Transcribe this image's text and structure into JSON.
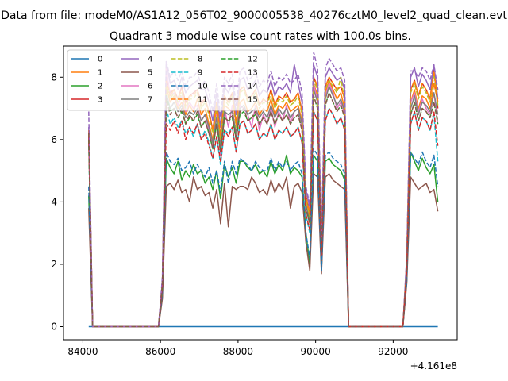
{
  "figure": {
    "suptitle": "Data from file: modeM0/AS1A12_056T02_9000005538_40276cztM0_level2_quad_clean.evt",
    "title": "Quadrant 3 module wise count rates with 100.0s bins.",
    "offset_label": "+4.161e8"
  },
  "chart_data": {
    "type": "line",
    "title": "Quadrant 3 module wise count rates with 100.0s bins.",
    "xlabel": "",
    "ylabel": "",
    "x_offset": 416100000,
    "xlim": [
      83500,
      93650
    ],
    "ylim": [
      -0.42,
      9.0
    ],
    "x_ticks": [
      84000,
      86000,
      88000,
      90000,
      92000
    ],
    "x_tick_labels": [
      "84000",
      "86000",
      "88000",
      "90000",
      "92000"
    ],
    "y_ticks": [
      0,
      2,
      4,
      6,
      8
    ],
    "y_tick_labels": [
      "0",
      "2",
      "4",
      "6",
      "8"
    ],
    "grid": false,
    "legend": {
      "placement": "top-left",
      "columns": 4
    },
    "x_points": [
      84150,
      84250,
      85950,
      86050,
      86150,
      86250,
      86350,
      86450,
      86550,
      86650,
      86750,
      86850,
      86950,
      87050,
      87150,
      87250,
      87350,
      87450,
      87550,
      87650,
      87750,
      87850,
      87950,
      88050,
      88150,
      88250,
      88350,
      88450,
      88550,
      88650,
      88750,
      88850,
      88950,
      89050,
      89150,
      89250,
      89350,
      89450,
      89550,
      89650,
      89750,
      89850,
      89950,
      90050,
      90150,
      90250,
      90350,
      90450,
      90550,
      90650,
      90750,
      90850,
      90950,
      92250,
      92350,
      92450,
      92550,
      92650,
      92750,
      92850,
      92950,
      93050,
      93150
    ],
    "series": [
      {
        "name": "0",
        "color": "#1f77b4",
        "dash": "solid",
        "values": [
          0,
          0,
          0,
          0,
          0,
          0,
          0,
          0,
          0,
          0,
          0,
          0,
          0,
          0,
          0,
          0,
          0,
          0,
          0,
          0,
          0,
          0,
          0,
          0,
          0,
          0,
          0,
          0,
          0,
          0,
          0,
          0,
          0,
          0,
          0,
          0,
          0,
          0,
          0,
          0,
          0,
          0,
          0,
          0,
          0,
          0,
          0,
          0,
          0,
          0,
          0,
          0,
          0,
          0,
          0,
          0,
          0,
          0,
          0,
          0,
          0,
          0,
          0
        ]
      },
      {
        "name": "1",
        "color": "#ff7f0e",
        "dash": "solid",
        "values": [
          6.0,
          0,
          0,
          1.3,
          7.7,
          7.2,
          7.4,
          7.0,
          7.2,
          6.8,
          7.1,
          6.9,
          7.3,
          6.8,
          7.0,
          6.5,
          6.0,
          6.9,
          5.9,
          7.1,
          7.0,
          6.9,
          6.2,
          7.2,
          7.3,
          6.9,
          7.0,
          7.2,
          6.8,
          7.0,
          6.9,
          7.3,
          6.8,
          7.1,
          7.0,
          7.2,
          6.9,
          7.0,
          7.1,
          6.6,
          4.0,
          3.5,
          7.8,
          7.4,
          2.6,
          7.5,
          7.9,
          7.6,
          7.3,
          7.5,
          7.0,
          0,
          0,
          0,
          2.0,
          7.2,
          7.6,
          7.0,
          7.4,
          7.3,
          7.0,
          7.8,
          7.2
        ]
      },
      {
        "name": "2",
        "color": "#2ca02c",
        "dash": "solid",
        "values": [
          4.2,
          0,
          0,
          1.0,
          5.4,
          5.1,
          4.9,
          5.3,
          4.7,
          5.0,
          4.8,
          5.2,
          4.9,
          5.0,
          4.6,
          4.8,
          4.4,
          5.0,
          4.1,
          5.2,
          4.8,
          5.1,
          4.6,
          5.3,
          5.3,
          5.1,
          5.0,
          5.2,
          4.9,
          5.0,
          4.8,
          5.3,
          4.9,
          5.2,
          5.0,
          5.5,
          4.9,
          5.1,
          5.0,
          4.8,
          3.0,
          2.0,
          5.5,
          5.3,
          1.8,
          5.3,
          5.4,
          5.2,
          5.1,
          5.0,
          4.7,
          0,
          0,
          0,
          1.5,
          5.6,
          5.3,
          5.0,
          5.4,
          5.1,
          4.9,
          5.2,
          4.0
        ]
      },
      {
        "name": "3",
        "color": "#d62728",
        "dash": "solid",
        "values": [
          6.3,
          0,
          0,
          1.4,
          8.0,
          7.5,
          7.6,
          7.3,
          7.7,
          7.2,
          7.4,
          7.5,
          7.6,
          7.2,
          7.3,
          6.9,
          6.3,
          7.2,
          6.1,
          7.4,
          7.2,
          7.5,
          6.5,
          7.6,
          7.7,
          7.3,
          7.4,
          7.6,
          7.1,
          7.3,
          7.2,
          7.6,
          7.1,
          7.4,
          7.3,
          7.5,
          7.2,
          7.3,
          7.5,
          6.9,
          4.2,
          3.6,
          8.0,
          7.7,
          2.7,
          7.7,
          8.0,
          7.8,
          7.6,
          7.7,
          7.3,
          0,
          0,
          0,
          2.1,
          7.6,
          7.9,
          7.4,
          7.8,
          7.6,
          7.3,
          8.3,
          7.0
        ]
      },
      {
        "name": "4",
        "color": "#9467bd",
        "dash": "solid",
        "values": [
          6.4,
          0,
          0,
          1.5,
          8.5,
          7.8,
          7.9,
          7.6,
          8.0,
          7.5,
          7.7,
          7.8,
          7.9,
          7.6,
          7.6,
          7.2,
          6.6,
          7.5,
          6.4,
          7.7,
          7.5,
          7.8,
          6.8,
          7.9,
          8.0,
          7.6,
          7.7,
          7.9,
          7.4,
          7.6,
          7.5,
          7.9,
          7.4,
          7.7,
          7.6,
          7.8,
          7.5,
          8.4,
          7.8,
          7.2,
          4.4,
          3.8,
          8.4,
          8.0,
          2.8,
          8.0,
          8.3,
          8.1,
          7.9,
          8.0,
          7.6,
          0,
          0,
          0,
          2.2,
          8.0,
          8.3,
          7.7,
          8.1,
          7.9,
          7.6,
          8.4,
          7.3
        ]
      },
      {
        "name": "5",
        "color": "#8c564b",
        "dash": "solid",
        "values": [
          3.8,
          0,
          0,
          0.9,
          4.5,
          4.6,
          4.4,
          4.7,
          4.3,
          4.4,
          4.0,
          4.8,
          4.4,
          4.5,
          4.2,
          4.3,
          3.8,
          4.4,
          3.3,
          4.6,
          3.2,
          4.5,
          4.4,
          4.5,
          4.5,
          4.4,
          4.8,
          4.6,
          4.3,
          4.4,
          4.2,
          4.7,
          4.3,
          4.6,
          4.4,
          4.8,
          3.8,
          4.5,
          4.6,
          4.3,
          2.7,
          1.8,
          4.9,
          4.8,
          1.7,
          4.8,
          4.9,
          4.7,
          4.6,
          4.5,
          4.4,
          0,
          0,
          0,
          1.4,
          4.8,
          4.6,
          4.4,
          4.5,
          4.6,
          4.3,
          4.4,
          3.7
        ]
      },
      {
        "name": "6",
        "color": "#e377c2",
        "dash": "solid",
        "values": [
          6.2,
          0,
          0,
          1.4,
          8.3,
          7.4,
          7.5,
          7.1,
          7.4,
          6.9,
          7.2,
          7.0,
          7.1,
          6.6,
          6.8,
          6.3,
          5.8,
          6.8,
          5.5,
          7.0,
          6.4,
          7.1,
          6.0,
          7.1,
          7.0,
          6.8,
          6.4,
          7.1,
          6.3,
          6.8,
          6.5,
          7.0,
          6.4,
          6.9,
          6.6,
          7.1,
          6.5,
          6.9,
          7.0,
          6.3,
          3.9,
          3.3,
          7.8,
          7.2,
          2.5,
          7.4,
          7.8,
          7.5,
          7.0,
          7.2,
          6.8,
          0,
          0,
          0,
          2.0,
          7.2,
          7.5,
          6.9,
          7.3,
          7.0,
          6.8,
          7.5,
          6.5
        ]
      },
      {
        "name": "7",
        "color": "#7f7f7f",
        "dash": "solid",
        "values": [
          6.1,
          0,
          0,
          1.4,
          7.5,
          7.0,
          7.2,
          6.9,
          7.1,
          6.7,
          6.9,
          6.8,
          7.0,
          6.6,
          6.8,
          6.4,
          5.9,
          6.7,
          5.8,
          6.9,
          6.8,
          6.9,
          6.2,
          7.0,
          7.1,
          6.8,
          6.9,
          7.0,
          6.7,
          6.9,
          6.7,
          7.1,
          6.7,
          7.0,
          6.8,
          7.0,
          6.7,
          6.9,
          7.0,
          6.5,
          3.9,
          3.4,
          7.6,
          7.2,
          2.5,
          7.3,
          7.7,
          7.4,
          7.1,
          7.3,
          6.9,
          0,
          0,
          0,
          2.0,
          7.0,
          7.4,
          6.8,
          7.2,
          7.1,
          6.9,
          7.5,
          6.8
        ]
      },
      {
        "name": "8",
        "color": "#bcbd22",
        "dash": "dashed",
        "values": [
          6.2,
          0,
          0,
          1.4,
          7.8,
          7.3,
          7.5,
          7.2,
          7.5,
          7.0,
          7.3,
          7.3,
          7.5,
          7.0,
          7.2,
          6.8,
          6.2,
          7.1,
          6.0,
          7.3,
          7.1,
          7.4,
          6.4,
          7.5,
          7.6,
          7.2,
          7.3,
          7.5,
          7.0,
          7.2,
          7.1,
          7.5,
          7.0,
          7.3,
          7.2,
          7.4,
          7.1,
          7.2,
          7.4,
          6.8,
          4.1,
          3.5,
          7.9,
          7.6,
          2.6,
          7.6,
          7.9,
          7.7,
          7.5,
          8.0,
          7.2,
          0,
          0,
          0,
          2.1,
          7.5,
          7.8,
          7.3,
          7.7,
          7.5,
          7.2,
          8.1,
          7.1
        ]
      },
      {
        "name": "9",
        "color": "#17becf",
        "dash": "dashed",
        "values": [
          5.8,
          0,
          0,
          1.3,
          7.0,
          6.5,
          6.7,
          6.4,
          6.6,
          6.2,
          6.4,
          6.1,
          6.5,
          6.0,
          6.3,
          5.9,
          5.4,
          6.1,
          5.2,
          6.3,
          6.2,
          6.4,
          5.6,
          6.5,
          6.6,
          6.2,
          6.3,
          6.5,
          6.0,
          6.2,
          6.1,
          6.5,
          6.0,
          6.3,
          6.2,
          6.4,
          6.1,
          6.2,
          6.4,
          5.9,
          3.6,
          3.0,
          6.9,
          6.6,
          2.3,
          6.6,
          7.0,
          6.8,
          6.5,
          6.7,
          6.3,
          0,
          0,
          0,
          1.8,
          6.5,
          6.9,
          6.3,
          6.7,
          6.6,
          6.3,
          6.8,
          5.3
        ]
      },
      {
        "name": "10",
        "color": "#1f77b4",
        "dash": "dashed",
        "values": [
          4.5,
          0,
          0,
          1.1,
          5.6,
          5.3,
          5.2,
          5.4,
          5.0,
          5.1,
          5.3,
          4.9,
          5.2,
          5.0,
          4.8,
          5.1,
          4.6,
          5.0,
          4.3,
          5.3,
          4.6,
          5.3,
          4.9,
          5.4,
          5.3,
          5.2,
          5.0,
          5.3,
          5.1,
          5.0,
          5.0,
          5.4,
          5.0,
          5.3,
          5.1,
          5.3,
          5.0,
          5.2,
          5.3,
          4.9,
          3.0,
          2.2,
          5.7,
          5.5,
          1.8,
          5.5,
          5.6,
          5.4,
          5.3,
          5.2,
          4.9,
          0,
          0,
          0,
          1.5,
          5.6,
          5.4,
          5.2,
          5.6,
          5.3,
          5.1,
          5.5,
          4.5
        ]
      },
      {
        "name": "11",
        "color": "#ff7f0e",
        "dash": "dashed",
        "values": [
          6.3,
          0,
          0,
          1.4,
          7.9,
          7.4,
          7.6,
          7.3,
          7.6,
          7.1,
          7.4,
          7.4,
          7.6,
          7.1,
          7.3,
          6.9,
          6.3,
          7.2,
          6.1,
          7.4,
          7.2,
          7.5,
          6.5,
          7.6,
          7.7,
          7.3,
          7.4,
          7.6,
          7.1,
          7.3,
          7.2,
          7.6,
          7.1,
          7.4,
          7.3,
          7.5,
          7.2,
          7.3,
          7.5,
          6.9,
          4.2,
          3.6,
          8.0,
          7.7,
          2.7,
          7.7,
          8.0,
          7.8,
          7.6,
          7.7,
          7.3,
          0,
          0,
          0,
          2.1,
          7.6,
          7.9,
          7.4,
          7.8,
          7.6,
          7.3,
          8.2,
          7.2
        ]
      },
      {
        "name": "12",
        "color": "#2ca02c",
        "dash": "dashed",
        "values": [
          6.0,
          0,
          0,
          1.3,
          7.4,
          6.9,
          7.0,
          6.7,
          6.9,
          6.5,
          6.7,
          6.6,
          6.8,
          6.4,
          6.6,
          6.2,
          5.7,
          6.5,
          5.6,
          6.7,
          6.6,
          6.7,
          6.0,
          6.8,
          6.9,
          6.6,
          6.7,
          6.8,
          6.5,
          6.7,
          6.5,
          6.9,
          6.5,
          6.8,
          6.6,
          6.8,
          6.5,
          6.7,
          6.8,
          6.3,
          3.8,
          3.3,
          7.4,
          7.0,
          2.4,
          7.1,
          7.5,
          7.2,
          6.9,
          7.1,
          6.7,
          0,
          0,
          0,
          1.9,
          6.8,
          7.2,
          6.6,
          7.0,
          6.9,
          6.7,
          7.2,
          6.5
        ]
      },
      {
        "name": "13",
        "color": "#d62728",
        "dash": "dashed",
        "values": [
          6.1,
          0,
          0,
          1.3,
          6.5,
          6.3,
          6.6,
          6.2,
          6.6,
          6.0,
          6.4,
          6.2,
          6.5,
          6.0,
          6.2,
          5.8,
          5.4,
          6.1,
          5.3,
          6.3,
          6.1,
          6.4,
          5.6,
          6.5,
          6.6,
          6.2,
          6.3,
          6.5,
          6.0,
          6.2,
          6.1,
          6.5,
          6.0,
          6.3,
          6.2,
          6.4,
          6.1,
          6.2,
          6.4,
          5.9,
          3.6,
          3.1,
          6.9,
          6.6,
          2.3,
          6.6,
          7.0,
          6.8,
          6.5,
          6.7,
          6.3,
          0,
          0,
          0,
          1.8,
          6.5,
          6.9,
          6.3,
          6.7,
          6.6,
          6.3,
          6.9,
          5.8
        ]
      },
      {
        "name": "14",
        "color": "#9467bd",
        "dash": "dashed",
        "values": [
          6.9,
          0,
          0,
          1.6,
          8.5,
          8.0,
          8.2,
          7.9,
          8.2,
          7.7,
          8.0,
          8.0,
          8.2,
          7.7,
          7.9,
          7.5,
          6.9,
          7.8,
          6.7,
          8.0,
          7.8,
          8.1,
          7.1,
          8.2,
          8.3,
          7.9,
          8.0,
          8.2,
          7.7,
          7.9,
          7.8,
          8.2,
          7.7,
          8.0,
          7.9,
          8.1,
          7.8,
          7.9,
          8.1,
          7.5,
          4.5,
          3.9,
          8.8,
          8.3,
          2.9,
          8.3,
          8.6,
          8.4,
          8.2,
          8.3,
          7.9,
          0,
          0,
          0,
          2.3,
          8.2,
          8.2,
          8.0,
          8.3,
          8.2,
          7.9,
          8.4,
          7.6
        ]
      },
      {
        "name": "15",
        "color": "#8c564b",
        "dash": "dashed",
        "values": [
          6.2,
          0,
          0,
          1.4,
          7.3,
          6.8,
          7.0,
          6.7,
          7.0,
          6.5,
          6.8,
          6.6,
          6.9,
          6.4,
          6.6,
          6.2,
          5.7,
          6.5,
          5.6,
          6.7,
          6.6,
          6.8,
          6.0,
          6.9,
          7.0,
          6.6,
          6.7,
          6.9,
          6.5,
          6.7,
          6.5,
          6.9,
          6.5,
          6.8,
          6.6,
          6.8,
          6.5,
          6.7,
          6.8,
          6.3,
          3.8,
          3.3,
          7.4,
          7.0,
          2.4,
          7.1,
          7.5,
          7.2,
          6.9,
          7.1,
          6.7,
          0,
          0,
          0,
          1.9,
          6.8,
          7.2,
          6.6,
          7.0,
          6.9,
          6.7,
          7.2,
          6.6
        ]
      }
    ]
  }
}
